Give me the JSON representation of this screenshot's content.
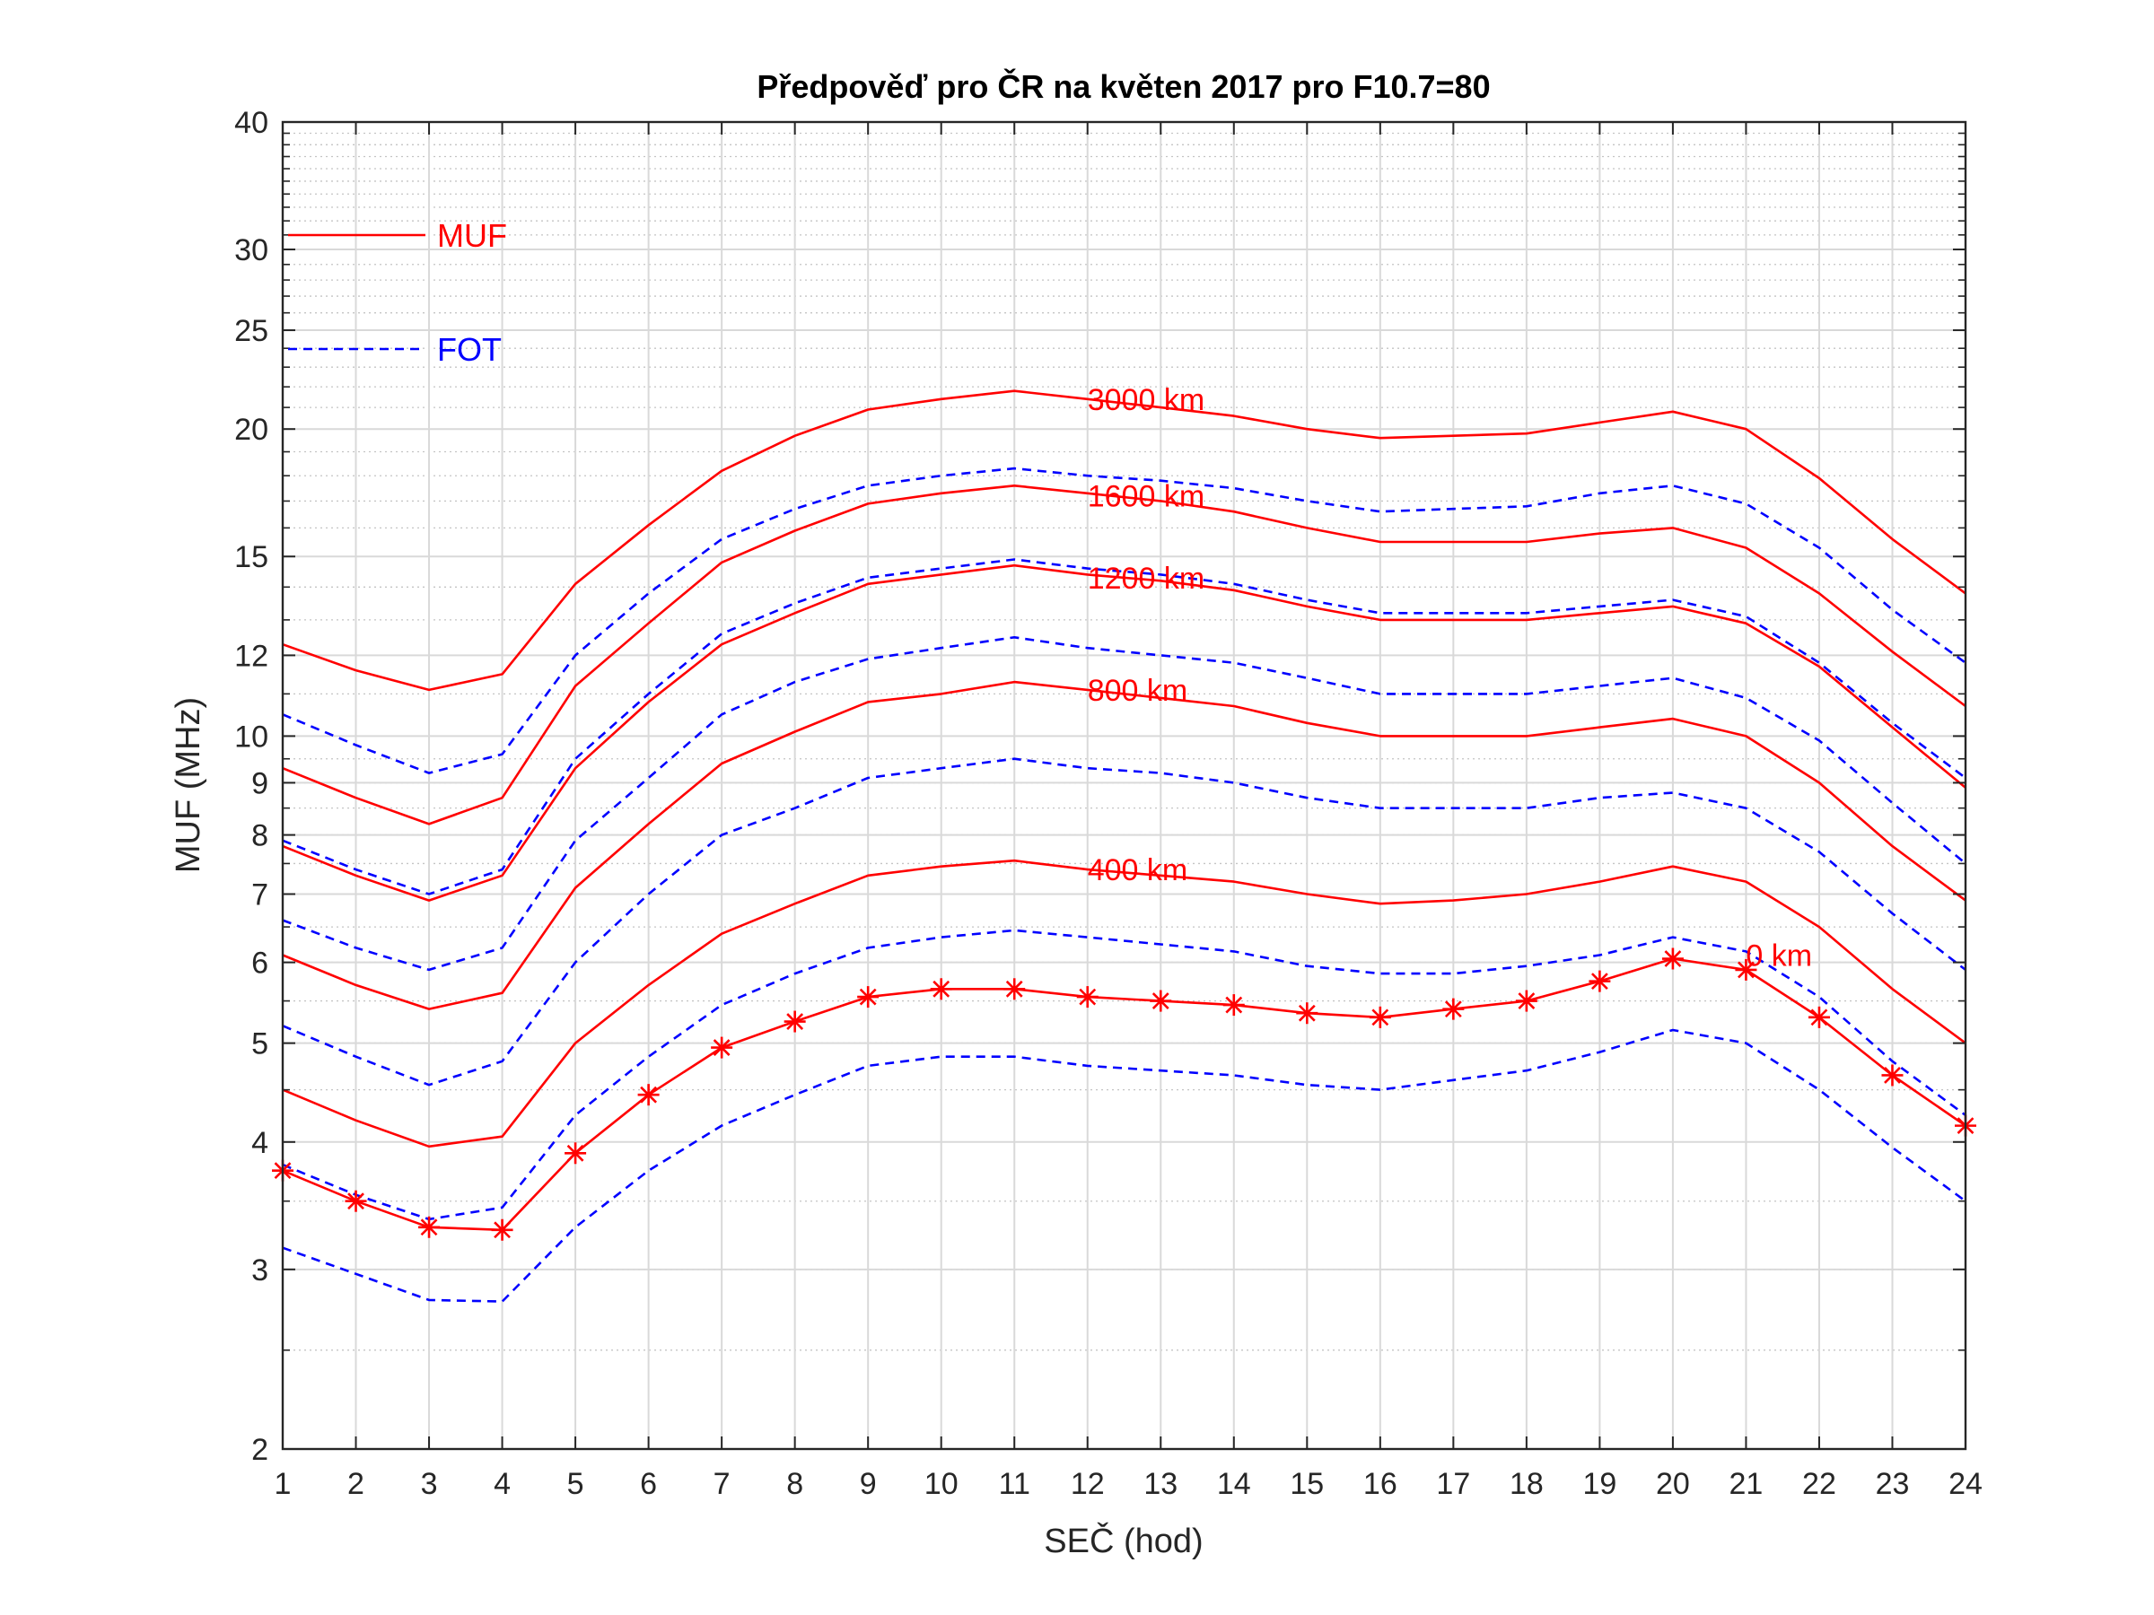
{
  "chart_data": {
    "type": "line",
    "title": "Předpověď pro ČR na květen 2017 pro F10.7=80",
    "xlabel": "SEČ (hod)",
    "ylabel": "MUF (MHz)",
    "y_scale": "log",
    "xlim": [
      1,
      24
    ],
    "ylim": [
      2,
      40
    ],
    "grid": true,
    "x_ticks": [
      "1",
      "2",
      "3",
      "4",
      "5",
      "6",
      "7",
      "8",
      "9",
      "10",
      "11",
      "12",
      "13",
      "14",
      "15",
      "16",
      "17",
      "18",
      "19",
      "20",
      "21",
      "22",
      "23",
      "24"
    ],
    "y_ticks": [
      {
        "value": 2,
        "label": "2"
      },
      {
        "value": 3,
        "label": "3"
      },
      {
        "value": 4,
        "label": "4"
      },
      {
        "value": 5,
        "label": "5"
      },
      {
        "value": 6,
        "label": "6"
      },
      {
        "value": 7,
        "label": "7"
      },
      {
        "value": 8,
        "label": "8"
      },
      {
        "value": 9,
        "label": "9"
      },
      {
        "value": 10,
        "label": "10"
      },
      {
        "value": 12,
        "label": "12"
      },
      {
        "value": 15,
        "label": "15"
      },
      {
        "value": 20,
        "label": "20"
      },
      {
        "value": 25,
        "label": "25"
      },
      {
        "value": 30,
        "label": "30"
      },
      {
        "value": 40,
        "label": "40"
      }
    ],
    "legend": {
      "placement": "top-left",
      "entries": [
        {
          "label": "MUF",
          "style": "solid",
          "color": "#ff0000"
        },
        {
          "label": "FOT",
          "style": "dashed",
          "color": "#0000ff"
        }
      ]
    },
    "x": [
      1,
      2,
      3,
      4,
      5,
      6,
      7,
      8,
      9,
      10,
      11,
      12,
      13,
      14,
      15,
      16,
      17,
      18,
      19,
      20,
      21,
      22,
      23,
      24
    ],
    "series": [
      {
        "distance": "3000 km",
        "kind": "MUF",
        "color": "#ff0000",
        "style": "solid",
        "values": [
          12.3,
          11.6,
          11.1,
          11.5,
          14.1,
          16.1,
          18.2,
          19.7,
          20.9,
          21.4,
          21.8,
          21.4,
          21.0,
          20.6,
          20.0,
          19.6,
          19.7,
          19.8,
          20.3,
          20.8,
          20.0,
          17.9,
          15.6,
          13.8
        ]
      },
      {
        "distance": "3000 km",
        "kind": "FOT",
        "color": "#0000ff",
        "style": "dashed",
        "values": [
          10.5,
          9.8,
          9.2,
          9.6,
          12.0,
          13.8,
          15.6,
          16.7,
          17.6,
          18.0,
          18.3,
          18.0,
          17.8,
          17.5,
          17.0,
          16.6,
          16.7,
          16.8,
          17.3,
          17.6,
          16.9,
          15.3,
          13.3,
          11.8
        ]
      },
      {
        "distance": "1600 km",
        "kind": "MUF",
        "color": "#ff0000",
        "style": "solid",
        "values": [
          9.3,
          8.7,
          8.2,
          8.7,
          11.2,
          12.9,
          14.8,
          15.9,
          16.9,
          17.3,
          17.6,
          17.3,
          17.0,
          16.6,
          16.0,
          15.5,
          15.5,
          15.5,
          15.8,
          16.0,
          15.3,
          13.8,
          12.1,
          10.7
        ]
      },
      {
        "distance": "1600 km",
        "kind": "FOT",
        "color": "#0000ff",
        "style": "dashed",
        "values": [
          7.9,
          7.4,
          7.0,
          7.4,
          9.5,
          11.0,
          12.6,
          13.5,
          14.3,
          14.6,
          14.9,
          14.6,
          14.4,
          14.1,
          13.6,
          13.2,
          13.2,
          13.2,
          13.4,
          13.6,
          13.1,
          11.8,
          10.3,
          9.1
        ]
      },
      {
        "distance": "1200 km",
        "kind": "MUF",
        "color": "#ff0000",
        "style": "solid",
        "values": [
          7.8,
          7.3,
          6.9,
          7.3,
          9.3,
          10.8,
          12.3,
          13.2,
          14.1,
          14.4,
          14.7,
          14.4,
          14.2,
          13.9,
          13.4,
          13.0,
          13.0,
          13.0,
          13.2,
          13.4,
          12.9,
          11.7,
          10.2,
          8.9
        ]
      },
      {
        "distance": "1200 km",
        "kind": "FOT",
        "color": "#0000ff",
        "style": "dashed",
        "values": [
          6.6,
          6.2,
          5.9,
          6.2,
          7.9,
          9.1,
          10.5,
          11.3,
          11.9,
          12.2,
          12.5,
          12.2,
          12.0,
          11.8,
          11.4,
          11.0,
          11.0,
          11.0,
          11.2,
          11.4,
          10.9,
          9.9,
          8.6,
          7.5
        ]
      },
      {
        "distance": "800 km",
        "kind": "MUF",
        "color": "#ff0000",
        "style": "solid",
        "values": [
          6.1,
          5.7,
          5.4,
          5.6,
          7.1,
          8.2,
          9.4,
          10.1,
          10.8,
          11.0,
          11.3,
          11.1,
          10.9,
          10.7,
          10.3,
          10.0,
          10.0,
          10.0,
          10.2,
          10.4,
          10.0,
          9.0,
          7.8,
          6.9
        ]
      },
      {
        "distance": "800 km",
        "kind": "FOT",
        "color": "#0000ff",
        "style": "dashed",
        "values": [
          5.2,
          4.85,
          4.55,
          4.8,
          6.0,
          7.0,
          8.0,
          8.5,
          9.1,
          9.3,
          9.5,
          9.3,
          9.2,
          9.0,
          8.7,
          8.5,
          8.5,
          8.5,
          8.7,
          8.8,
          8.5,
          7.7,
          6.7,
          5.9
        ]
      },
      {
        "distance": "400 km",
        "kind": "MUF",
        "color": "#ff0000",
        "style": "solid",
        "values": [
          4.5,
          4.2,
          3.96,
          4.05,
          5.0,
          5.7,
          6.4,
          6.85,
          7.3,
          7.45,
          7.55,
          7.4,
          7.3,
          7.2,
          7.0,
          6.85,
          6.9,
          7.0,
          7.2,
          7.45,
          7.2,
          6.5,
          5.65,
          5.0
        ]
      },
      {
        "distance": "400 km",
        "kind": "FOT",
        "color": "#0000ff",
        "style": "dashed",
        "values": [
          3.8,
          3.55,
          3.36,
          3.45,
          4.25,
          4.85,
          5.45,
          5.85,
          6.2,
          6.35,
          6.45,
          6.35,
          6.25,
          6.15,
          5.95,
          5.85,
          5.85,
          5.95,
          6.1,
          6.35,
          6.15,
          5.55,
          4.8,
          4.25
        ]
      },
      {
        "distance": "0 km",
        "kind": "MUF",
        "color": "#ff0000",
        "style": "solid-star",
        "values": [
          3.75,
          3.5,
          3.3,
          3.28,
          3.9,
          4.45,
          4.95,
          5.25,
          5.55,
          5.65,
          5.65,
          5.55,
          5.5,
          5.45,
          5.35,
          5.3,
          5.4,
          5.5,
          5.75,
          6.05,
          5.9,
          5.3,
          4.65,
          4.15
        ]
      },
      {
        "distance": "0 km",
        "kind": "FOT",
        "color": "#0000ff",
        "style": "dashed",
        "values": [
          3.15,
          2.97,
          2.8,
          2.79,
          3.3,
          3.75,
          4.15,
          4.45,
          4.75,
          4.85,
          4.85,
          4.75,
          4.7,
          4.65,
          4.55,
          4.5,
          4.6,
          4.7,
          4.9,
          5.15,
          5.0,
          4.5,
          3.95,
          3.5
        ]
      }
    ],
    "annotations": [
      {
        "text": "3000 km",
        "x": 12,
        "y": 21.4
      },
      {
        "text": "1600 km",
        "x": 12,
        "y": 17.2
      },
      {
        "text": "1200 km",
        "x": 12,
        "y": 14.3
      },
      {
        "text": "800 km",
        "x": 12,
        "y": 11.1
      },
      {
        "text": "400 km",
        "x": 12,
        "y": 7.4
      },
      {
        "text": "0 km",
        "x": 21,
        "y": 6.1
      }
    ]
  }
}
